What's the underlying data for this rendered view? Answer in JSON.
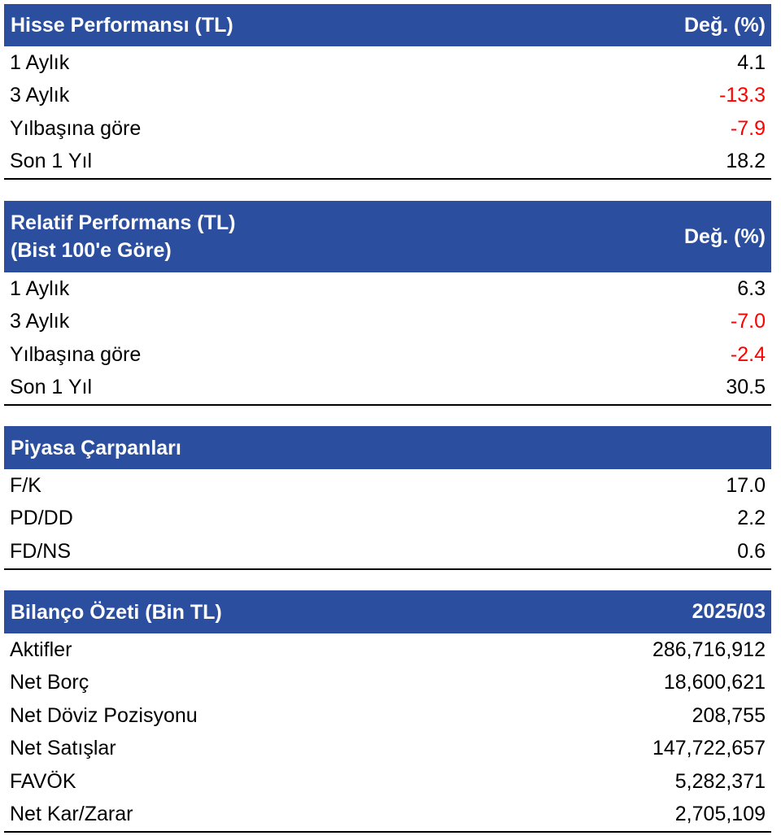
{
  "colors": {
    "header_bg": "#2b4f9e",
    "header_text": "#ffffff",
    "negative": "#ff0000"
  },
  "tables": [
    {
      "title_line1": "Hisse Performansı (TL)",
      "title_line2": "",
      "right_header": "Değ. (%)",
      "rows": [
        {
          "label": "1 Aylık",
          "value": "4.1",
          "negative": false
        },
        {
          "label": "3 Aylık",
          "value": "-13.3",
          "negative": true
        },
        {
          "label": "Yılbaşına göre",
          "value": "-7.9",
          "negative": true
        },
        {
          "label": "Son 1 Yıl",
          "value": "18.2",
          "negative": false
        }
      ]
    },
    {
      "title_line1": "Relatif Performans (TL)",
      "title_line2": "(Bist 100'e Göre)",
      "right_header": "Değ. (%)",
      "rows": [
        {
          "label": "1 Aylık",
          "value": "6.3",
          "negative": false
        },
        {
          "label": "3 Aylık",
          "value": "-7.0",
          "negative": true
        },
        {
          "label": "Yılbaşına göre",
          "value": "-2.4",
          "negative": true
        },
        {
          "label": "Son 1 Yıl",
          "value": "30.5",
          "negative": false
        }
      ]
    },
    {
      "title_line1": "Piyasa Çarpanları",
      "title_line2": "",
      "right_header": "",
      "rows": [
        {
          "label": "F/K",
          "value": "17.0",
          "negative": false
        },
        {
          "label": "PD/DD",
          "value": "2.2",
          "negative": false
        },
        {
          "label": "FD/NS",
          "value": "0.6",
          "negative": false
        }
      ]
    },
    {
      "title_line1": "Bilanço Özeti (Bin TL)",
      "title_line2": "",
      "right_header": "2025/03",
      "rows": [
        {
          "label": "Aktifler",
          "value": "286,716,912",
          "negative": false
        },
        {
          "label": "Net Borç",
          "value": "18,600,621",
          "negative": false
        },
        {
          "label": "Net Döviz Pozisyonu",
          "value": "208,755",
          "negative": false
        },
        {
          "label": "Net Satışlar",
          "value": "147,722,657",
          "negative": false
        },
        {
          "label": "FAVÖK",
          "value": "5,282,371",
          "negative": false
        },
        {
          "label": "Net Kar/Zarar",
          "value": "2,705,109",
          "negative": false
        }
      ]
    }
  ]
}
